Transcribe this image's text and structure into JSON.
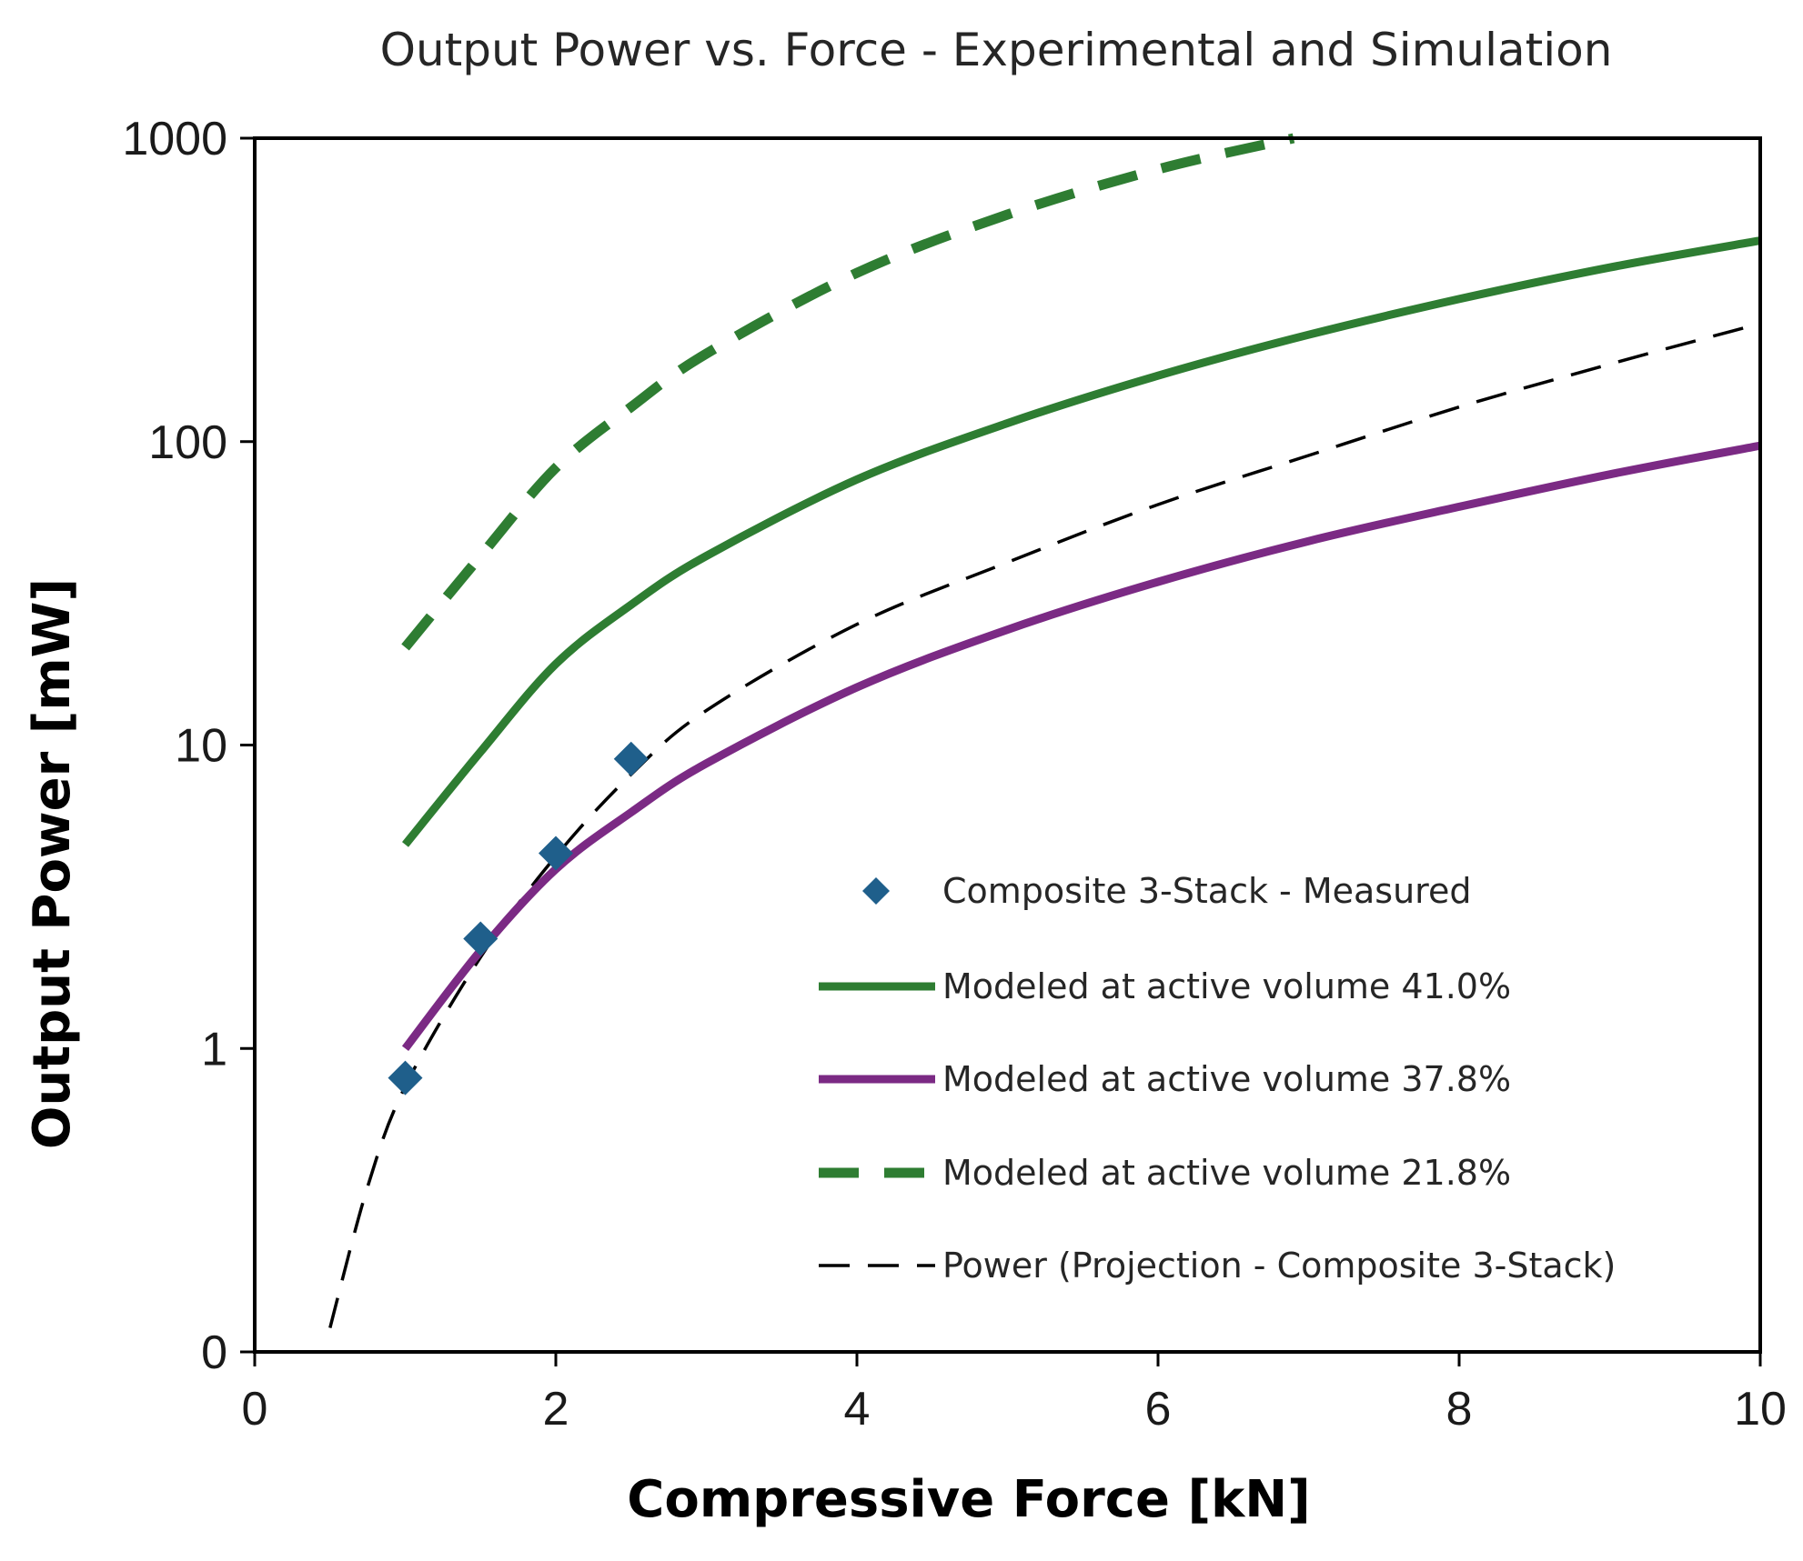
{
  "chart_data": {
    "type": "line",
    "title": "Output Power vs. Force -  Experimental and Simulation",
    "xlabel": "Compressive Force [kN]",
    "ylabel": "Output Power [mW]",
    "xlim": [
      0,
      10
    ],
    "x_ticks": [
      0,
      2,
      4,
      6,
      8,
      10
    ],
    "x_tick_labels": [
      "0",
      "2",
      "4",
      "6",
      "8",
      "10"
    ],
    "y_scale": "log (bottom label 0 drawn at 0.1)",
    "ylim": [
      0.1,
      1000
    ],
    "y_ticks": [
      0.1,
      1,
      10,
      100,
      1000
    ],
    "y_tick_labels": [
      "0",
      "1",
      "10",
      "100",
      "1000"
    ],
    "grid": false,
    "legend_position": "lower-right inside plot",
    "series": [
      {
        "name": "Composite 3-Stack - Measured",
        "kind": "scatter",
        "marker": "diamond",
        "color": "#1f5f8b",
        "x": [
          1.0,
          1.5,
          2.0,
          2.5
        ],
        "y": [
          0.8,
          2.3,
          4.4,
          9.0
        ]
      },
      {
        "name": "Modeled at active volume 41.0%",
        "kind": "line",
        "style": "solid",
        "color": "#2e7d32",
        "x": [
          1.0,
          1.5,
          2.0,
          2.5,
          3.0,
          4.0,
          5.0,
          6.0,
          7.0,
          8.0,
          9.0,
          10.0
        ],
        "y": [
          4.7,
          9.5,
          18.5,
          29.0,
          42.0,
          75.0,
          115.0,
          165.0,
          225.0,
          295.0,
          375.0,
          460.0
        ]
      },
      {
        "name": "Modeled at active volume 37.8%",
        "kind": "line",
        "style": "solid",
        "color": "#7b2a84",
        "x": [
          1.0,
          1.5,
          2.0,
          2.5,
          3.0,
          4.0,
          5.0,
          6.0,
          7.0,
          8.0,
          9.0,
          10.0
        ],
        "y": [
          1.0,
          2.1,
          3.9,
          6.0,
          8.7,
          15.5,
          24.0,
          34.5,
          47.0,
          61.0,
          78.0,
          97.0
        ]
      },
      {
        "name": "Modeled at active volume 21.8%",
        "kind": "line",
        "style": "dashed-thick",
        "color": "#2e7d32",
        "x": [
          1.0,
          1.5,
          2.0,
          2.5,
          3.0,
          4.0,
          5.0,
          6.0,
          6.9
        ],
        "y": [
          21.0,
          42.0,
          82.0,
          130.0,
          195.0,
          360.0,
          560.0,
          790.0,
          1000.0
        ]
      },
      {
        "name": "Power (Projection - Composite 3-Stack)",
        "kind": "line",
        "style": "dashed-thin",
        "color": "#000000",
        "x": [
          0.5,
          0.75,
          1.0,
          1.5,
          2.0,
          2.5,
          3.0,
          4.0,
          5.0,
          6.0,
          7.0,
          8.0,
          9.0,
          10.0
        ],
        "y": [
          0.12,
          0.35,
          0.75,
          2.0,
          4.3,
          8.0,
          13.0,
          25.0,
          40.0,
          62.0,
          90.0,
          130.0,
          180.0,
          245.0
        ]
      }
    ]
  }
}
